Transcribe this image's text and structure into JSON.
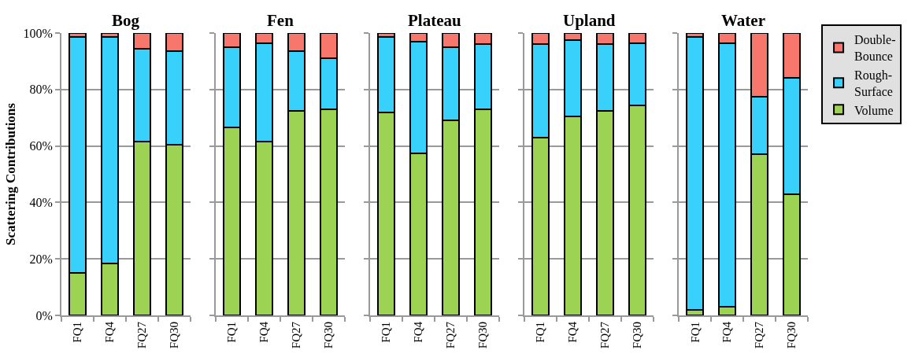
{
  "chart_data": [
    {
      "type": "bar",
      "stacked": true,
      "title": "Bog",
      "ylabel": "Scattering Contributions",
      "categories": [
        "FQ1",
        "FQ4",
        "FQ27",
        "FQ30"
      ],
      "ylim": [
        0,
        100
      ],
      "yticks": [
        {
          "value": 0,
          "label": "0%"
        },
        {
          "value": 20,
          "label": "20%"
        },
        {
          "value": 40,
          "label": "40%"
        },
        {
          "value": 60,
          "label": "60%"
        },
        {
          "value": 80,
          "label": "80%"
        },
        {
          "value": 100,
          "label": "100%"
        }
      ],
      "grid": "y",
      "series": [
        {
          "color": "#9dd352",
          "values": [
            15,
            18.5,
            61.5,
            60.5
          ]
        },
        {
          "color": "#38d1fc",
          "values": [
            83.5,
            80,
            33,
            33
          ]
        },
        {
          "color": "#f8776c",
          "values": [
            1.5,
            1.5,
            5.5,
            6.5
          ]
        }
      ]
    },
    {
      "type": "bar",
      "stacked": true,
      "title": "Fen",
      "categories": [
        "FQ1",
        "FQ4",
        "FQ27",
        "FQ30"
      ],
      "ylim": [
        0,
        100
      ],
      "yticks": [
        0,
        20,
        40,
        60,
        80,
        100
      ],
      "grid": "y",
      "tick_labels": "x",
      "series": [
        {
          "color": "#9dd352",
          "values": [
            66.5,
            61.5,
            72.5,
            73
          ]
        },
        {
          "color": "#38d1fc",
          "values": [
            28.5,
            35,
            21,
            18
          ]
        },
        {
          "color": "#f8776c",
          "values": [
            5,
            3.5,
            6.5,
            9
          ]
        }
      ]
    },
    {
      "type": "bar",
      "stacked": true,
      "title": "Plateau",
      "categories": [
        "FQ1",
        "FQ4",
        "FQ27",
        "FQ30"
      ],
      "ylim": [
        0,
        100
      ],
      "yticks": [
        0,
        20,
        40,
        60,
        80,
        100
      ],
      "grid": "y",
      "tick_labels": "x",
      "series": [
        {
          "color": "#9dd352",
          "values": [
            72,
            57.5,
            69,
            73
          ]
        },
        {
          "color": "#38d1fc",
          "values": [
            26.5,
            39.5,
            26,
            23
          ]
        },
        {
          "color": "#f8776c",
          "values": [
            1.5,
            3,
            5,
            4
          ]
        }
      ]
    },
    {
      "type": "bar",
      "stacked": true,
      "title": "Upland",
      "categories": [
        "FQ1",
        "FQ4",
        "FQ27",
        "FQ30"
      ],
      "ylim": [
        0,
        100
      ],
      "yticks": [
        0,
        20,
        40,
        60,
        80,
        100
      ],
      "grid": "y",
      "tick_labels": "x",
      "series": [
        {
          "color": "#9dd352",
          "values": [
            63,
            70.5,
            72.5,
            74.5
          ]
        },
        {
          "color": "#38d1fc",
          "values": [
            33,
            27,
            23.5,
            22
          ]
        },
        {
          "color": "#f8776c",
          "values": [
            4,
            2.5,
            4,
            3.5
          ]
        }
      ]
    },
    {
      "type": "bar",
      "stacked": true,
      "title": "Water",
      "categories": [
        "FQ1",
        "FQ4",
        "FQ27",
        "FQ30"
      ],
      "ylim": [
        0,
        100
      ],
      "yticks": [
        0,
        20,
        40,
        60,
        80,
        100
      ],
      "grid": "y",
      "tick_labels": "x",
      "legend": "right",
      "series": [
        {
          "name": "Volume",
          "color": "#9dd352",
          "values": [
            2,
            3,
            57,
            43
          ]
        },
        {
          "name": "Rough-Surface",
          "color": "#38d1fc",
          "values": [
            96.5,
            93.5,
            20.5,
            41
          ]
        },
        {
          "name": "Double-Bounce",
          "color": "#f8776c",
          "values": [
            1.5,
            3.5,
            22.5,
            16
          ]
        }
      ]
    }
  ]
}
